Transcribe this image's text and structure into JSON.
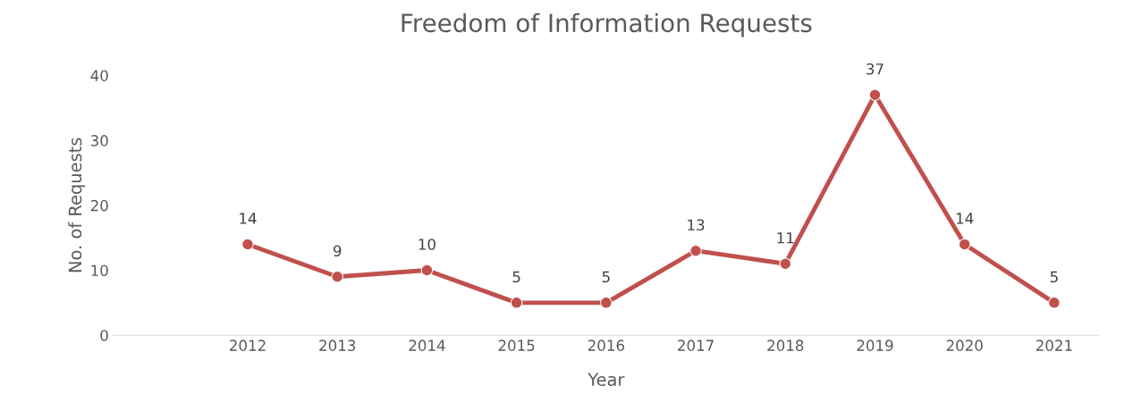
{
  "chart_data": {
    "type": "line",
    "title": "Freedom of Information Requests",
    "xlabel": "Year",
    "ylabel": "No. of Requests",
    "categories": [
      null,
      "2012",
      "2013",
      "2014",
      "2015",
      "2016",
      "2017",
      "2018",
      "2019",
      "2020",
      "2021"
    ],
    "series": [
      {
        "color": "#c0504d",
        "values": [
          null,
          14,
          9,
          10,
          5,
          5,
          13,
          11,
          37,
          14,
          5
        ]
      }
    ],
    "ylim": [
      0,
      40
    ],
    "yticks": [
      0,
      10,
      20,
      30,
      40
    ],
    "grid": false,
    "marker": "circle",
    "line_style": "solid",
    "data_labels": true
  }
}
